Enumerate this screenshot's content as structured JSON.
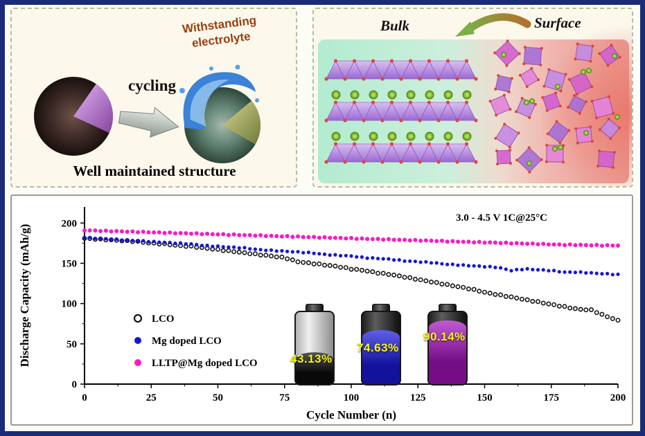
{
  "page": {
    "border_color": "#1b2b78",
    "background": "#fdfdf8"
  },
  "top_left_panel": {
    "withstanding_line1": "Withstanding",
    "withstanding_line2": "electrolyte",
    "cycling_label": "cycling",
    "caption": "Well maintained structure"
  },
  "top_right_panel": {
    "bulk_label": "Bulk",
    "surface_label": "Surface"
  },
  "chart_data": {
    "type": "scatter",
    "title": "",
    "xlabel": "Cycle Number (n)",
    "ylabel": "Discharge Capacity (mAh/g)",
    "annotation": "3.0 - 4.5 V  1C@25°C",
    "xlim": [
      0,
      200
    ],
    "ylim": [
      0,
      220
    ],
    "xticks": [
      0,
      25,
      50,
      75,
      100,
      125,
      150,
      175,
      200
    ],
    "yticks": [
      0,
      50,
      100,
      150,
      200
    ],
    "grid": false,
    "legend_position": "center-left",
    "x_step": 5,
    "series": [
      {
        "name": "LCO",
        "color": "#141414",
        "marker": "open-circle",
        "retention": "43.13%",
        "values": [
          181,
          180,
          179,
          178,
          177,
          175,
          174,
          172,
          171,
          169,
          167,
          165,
          163,
          161,
          159,
          157,
          152,
          150,
          148,
          146,
          143,
          141,
          138,
          136,
          133,
          130,
          127,
          124,
          121,
          118,
          114,
          111,
          108,
          105,
          102,
          99,
          96,
          93,
          92,
          85,
          79
        ]
      },
      {
        "name": "Mg doped LCO",
        "color": "#1515dd",
        "marker": "filled-circle",
        "retention": "74.63%",
        "values": [
          182,
          181,
          180,
          179,
          178,
          177,
          176,
          175,
          174,
          172,
          171,
          170,
          169,
          167,
          166,
          165,
          164,
          163,
          161,
          160,
          159,
          157,
          156,
          155,
          153,
          152,
          151,
          149,
          148,
          147,
          146,
          145,
          141,
          143,
          142,
          141,
          139,
          139,
          138,
          137,
          136
        ]
      },
      {
        "name": "LLTP@Mg doped LCO",
        "color": "#ff17c6",
        "marker": "filled-circle",
        "retention": "90.14%",
        "values": [
          191,
          190.5,
          190,
          189.5,
          189,
          188.5,
          188,
          187.5,
          187,
          186.5,
          186,
          185.5,
          185,
          184.5,
          184,
          183.5,
          183,
          182.5,
          182,
          181.5,
          181,
          180.5,
          180,
          179.5,
          179,
          178.5,
          178,
          177.5,
          177,
          176.5,
          176,
          175.5,
          175,
          174.5,
          174,
          173.5,
          173,
          172.8,
          172.5,
          172.2,
          172
        ]
      }
    ],
    "batteries": [
      {
        "label": "43.13%",
        "fill_percent": 44,
        "fill_color": "#0d0d0d",
        "body": "silver"
      },
      {
        "label": "74.63%",
        "fill_percent": 75,
        "fill_color": "#1a1ae0",
        "body": "dark"
      },
      {
        "label": "90.14%",
        "fill_percent": 88,
        "fill_color": "#a714c0",
        "body": "dark"
      }
    ]
  }
}
